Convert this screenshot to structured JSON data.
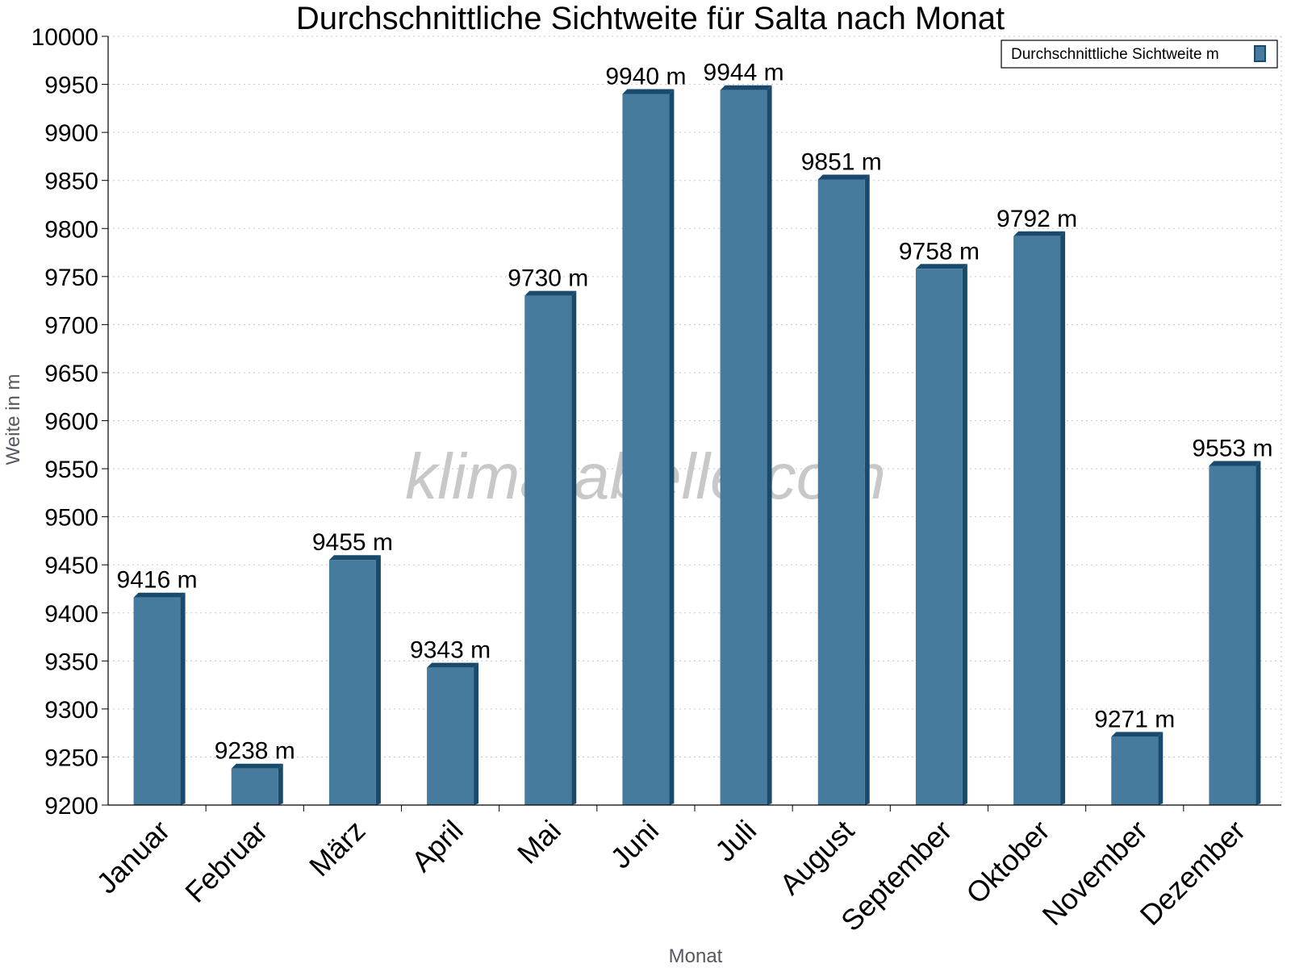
{
  "chart_data": {
    "type": "bar",
    "title": "Durchschnittliche Sichtweite für Salta nach Monat",
    "xlabel": "Monat",
    "ylabel": "Weite in m",
    "ylim": [
      9200,
      10000
    ],
    "yticks": [
      9200,
      9250,
      9300,
      9350,
      9400,
      9450,
      9500,
      9550,
      9600,
      9650,
      9700,
      9750,
      9800,
      9850,
      9900,
      9950,
      10000
    ],
    "categories": [
      "Januar",
      "Februar",
      "März",
      "April",
      "Mai",
      "Juni",
      "Juli",
      "August",
      "September",
      "Oktober",
      "November",
      "Dezember"
    ],
    "series": [
      {
        "name": "Durchschnittliche Sichtweite m",
        "values": [
          9416,
          9238,
          9455,
          9343,
          9730,
          9940,
          9944,
          9851,
          9758,
          9792,
          9271,
          9553
        ],
        "labels": [
          "9416 m",
          "9238 m",
          "9455 m",
          "9343 m",
          "9730 m",
          "9940 m",
          "9944 m",
          "9851 m",
          "9758 m",
          "9792 m",
          "9271 m",
          "9553 m"
        ]
      }
    ],
    "grid": true,
    "legend_position": "top-right",
    "bar_color": "#467b9d",
    "bar_dark_color": "#1a4a6b"
  },
  "watermark": "klimatabelle.com"
}
